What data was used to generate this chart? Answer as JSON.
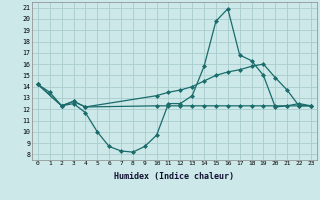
{
  "xlabel": "Humidex (Indice chaleur)",
  "background_color": "#cce8e8",
  "grid_color": "#aacccc",
  "line_color": "#1a6b6b",
  "xlim": [
    -0.5,
    23.5
  ],
  "ylim": [
    7.5,
    21.5
  ],
  "xticks": [
    0,
    1,
    2,
    3,
    4,
    5,
    6,
    7,
    8,
    9,
    10,
    11,
    12,
    13,
    14,
    15,
    16,
    17,
    18,
    19,
    20,
    21,
    22,
    23
  ],
  "yticks": [
    8,
    9,
    10,
    11,
    12,
    13,
    14,
    15,
    16,
    17,
    18,
    19,
    20,
    21
  ],
  "line1_x": [
    0,
    1,
    2,
    3,
    4,
    5,
    6,
    7,
    8,
    9,
    10,
    11,
    12,
    13,
    14,
    15,
    16,
    17,
    18,
    19,
    20,
    21,
    22,
    23
  ],
  "line1_y": [
    14.2,
    13.5,
    12.3,
    12.5,
    11.7,
    10.0,
    8.7,
    8.3,
    8.2,
    8.7,
    9.7,
    12.5,
    12.5,
    13.2,
    15.8,
    19.8,
    20.9,
    16.8,
    16.3,
    15.0,
    12.2,
    12.3,
    12.5,
    12.3
  ],
  "line2_x": [
    0,
    2,
    3,
    4,
    10,
    11,
    12,
    13,
    14,
    15,
    16,
    17,
    18,
    19,
    20,
    21,
    22,
    23
  ],
  "line2_y": [
    14.2,
    12.3,
    12.7,
    12.2,
    13.2,
    13.5,
    13.7,
    14.0,
    14.5,
    15.0,
    15.3,
    15.5,
    15.8,
    16.0,
    14.8,
    13.7,
    12.3,
    12.3
  ],
  "line3_x": [
    0,
    2,
    3,
    4,
    10,
    11,
    12,
    13,
    14,
    15,
    16,
    17,
    18,
    19,
    20,
    21,
    22,
    23
  ],
  "line3_y": [
    14.2,
    12.3,
    12.7,
    12.2,
    12.3,
    12.3,
    12.3,
    12.3,
    12.3,
    12.3,
    12.3,
    12.3,
    12.3,
    12.3,
    12.3,
    12.3,
    12.3,
    12.3
  ]
}
